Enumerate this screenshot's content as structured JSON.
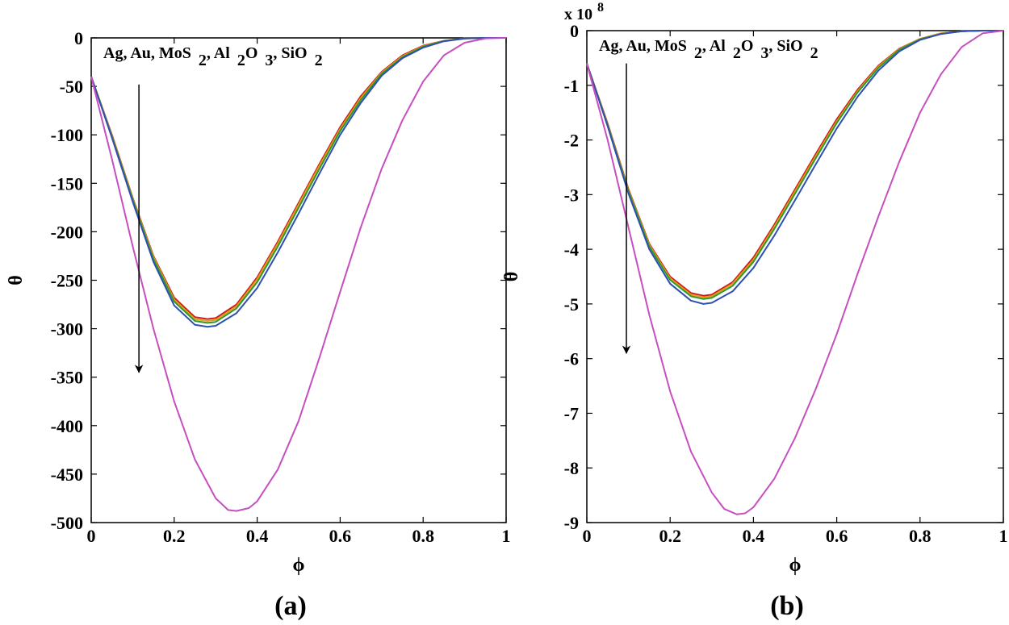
{
  "colors": {
    "Ag": "#d01c1c",
    "Au": "#e0a018",
    "MoS2": "#2e9a2e",
    "Al2O3": "#2e4fb0",
    "SiO2": "#c64fc0",
    "axis": "#000000",
    "arrow": "#000000"
  },
  "chart_data": [
    {
      "type": "line",
      "panel_label": "(a)",
      "xlabel": "ϕ",
      "ylabel": "θ",
      "xlim": [
        0,
        1
      ],
      "ylim": [
        -500,
        0
      ],
      "xticks": [
        0,
        0.2,
        0.4,
        0.6,
        0.8,
        1
      ],
      "xtick_labels": [
        "0",
        "0.2",
        "0.4",
        "0.6",
        "0.8",
        "1"
      ],
      "yticks": [
        0,
        -50,
        -100,
        -150,
        -200,
        -250,
        -300,
        -350,
        -400,
        -450,
        -500
      ],
      "ytick_labels": [
        "0",
        "-50",
        "-100",
        "-150",
        "-200",
        "-250",
        "-300",
        "-350",
        "-400",
        "-450",
        "-500"
      ],
      "exponent_label": null,
      "annotation": {
        "parts": [
          {
            "text": "Ag, Au, MoS",
            "sub": false
          },
          {
            "text": "2",
            "sub": true
          },
          {
            "text": ", Al",
            "sub": false
          },
          {
            "text": "2",
            "sub": true
          },
          {
            "text": "O",
            "sub": false
          },
          {
            "text": "3",
            "sub": true
          },
          {
            "text": ",  SiO",
            "sub": false
          },
          {
            "text": "2",
            "sub": true
          }
        ],
        "arrow_x": 0.115,
        "arrow_from_y": -48,
        "arrow_to_y": -345
      },
      "series": [
        {
          "name": "Ag",
          "color_key": "Ag",
          "x": [
            0,
            0.05,
            0.1,
            0.15,
            0.2,
            0.25,
            0.28,
            0.3,
            0.35,
            0.4,
            0.45,
            0.5,
            0.55,
            0.6,
            0.65,
            0.7,
            0.75,
            0.8,
            0.85,
            0.9,
            0.95,
            1.0
          ],
          "y": [
            -40,
            -100,
            -165,
            -225,
            -268,
            -288,
            -290,
            -289,
            -275,
            -247,
            -210,
            -170,
            -130,
            -92,
            -60,
            -35,
            -18,
            -8,
            -3,
            -0.5,
            0,
            0
          ]
        },
        {
          "name": "Au",
          "color_key": "Au",
          "x": [
            0,
            0.05,
            0.1,
            0.15,
            0.2,
            0.25,
            0.28,
            0.3,
            0.35,
            0.4,
            0.45,
            0.5,
            0.55,
            0.6,
            0.65,
            0.7,
            0.75,
            0.8,
            0.85,
            0.9,
            0.95,
            1.0
          ],
          "y": [
            -40,
            -101,
            -166,
            -226,
            -270,
            -290,
            -292,
            -291,
            -277,
            -249,
            -212,
            -172,
            -132,
            -94,
            -62,
            -36,
            -19,
            -8.5,
            -3,
            -0.5,
            0,
            0
          ]
        },
        {
          "name": "MoS2",
          "color_key": "MoS2",
          "x": [
            0,
            0.05,
            0.1,
            0.15,
            0.2,
            0.25,
            0.28,
            0.3,
            0.35,
            0.4,
            0.45,
            0.5,
            0.55,
            0.6,
            0.65,
            0.7,
            0.75,
            0.8,
            0.85,
            0.9,
            0.95,
            1.0
          ],
          "y": [
            -40,
            -102,
            -167,
            -228,
            -272,
            -292,
            -294,
            -293,
            -279,
            -252,
            -215,
            -175,
            -135,
            -96,
            -64,
            -37,
            -20,
            -9,
            -3.2,
            -0.6,
            0,
            0
          ]
        },
        {
          "name": "Al2O3",
          "color_key": "Al2O3",
          "x": [
            0,
            0.05,
            0.1,
            0.15,
            0.2,
            0.25,
            0.28,
            0.3,
            0.35,
            0.4,
            0.45,
            0.5,
            0.55,
            0.6,
            0.65,
            0.7,
            0.75,
            0.8,
            0.85,
            0.9,
            0.95,
            1.0
          ],
          "y": [
            -40,
            -103,
            -169,
            -231,
            -276,
            -296,
            -298,
            -297,
            -284,
            -258,
            -221,
            -181,
            -140,
            -100,
            -67,
            -39,
            -21,
            -10,
            -3.5,
            -0.7,
            0,
            0
          ]
        },
        {
          "name": "SiO2",
          "color_key": "SiO2",
          "x": [
            0,
            0.05,
            0.1,
            0.15,
            0.2,
            0.25,
            0.3,
            0.33,
            0.35,
            0.38,
            0.4,
            0.45,
            0.5,
            0.55,
            0.6,
            0.65,
            0.7,
            0.75,
            0.8,
            0.85,
            0.9,
            0.95,
            1.0
          ],
          "y": [
            -40,
            -125,
            -215,
            -300,
            -375,
            -435,
            -475,
            -487,
            -488,
            -485,
            -478,
            -445,
            -395,
            -330,
            -262,
            -195,
            -135,
            -85,
            -45,
            -18,
            -5,
            -0.5,
            0
          ]
        }
      ]
    },
    {
      "type": "line",
      "panel_label": "(b)",
      "xlabel": "ϕ",
      "ylabel": "θ",
      "xlim": [
        0,
        1
      ],
      "ylim": [
        -9,
        0
      ],
      "xticks": [
        0,
        0.2,
        0.4,
        0.6,
        0.8,
        1
      ],
      "xtick_labels": [
        "0",
        "0.2",
        "0.4",
        "0.6",
        "0.8",
        "1"
      ],
      "yticks": [
        0,
        -1,
        -2,
        -3,
        -4,
        -5,
        -6,
        -7,
        -8,
        -9
      ],
      "ytick_labels": [
        "0",
        "-1",
        "-2",
        "-3",
        "-4",
        "-5",
        "-6",
        "-7",
        "-8",
        "-9"
      ],
      "exponent_label": {
        "base": "x 10",
        "power": "8"
      },
      "annotation": {
        "parts": [
          {
            "text": "Ag, Au, MoS",
            "sub": false
          },
          {
            "text": "2",
            "sub": true
          },
          {
            "text": ", Al",
            "sub": false
          },
          {
            "text": "2",
            "sub": true
          },
          {
            "text": "O",
            "sub": false
          },
          {
            "text": "3",
            "sub": true
          },
          {
            "text": ",  SiO",
            "sub": false
          },
          {
            "text": "2",
            "sub": true
          }
        ],
        "arrow_x": 0.095,
        "arrow_from_y": -0.6,
        "arrow_to_y": -5.9
      },
      "series": [
        {
          "name": "Ag",
          "color_key": "Ag",
          "x": [
            0,
            0.05,
            0.1,
            0.15,
            0.2,
            0.25,
            0.28,
            0.3,
            0.35,
            0.4,
            0.45,
            0.5,
            0.55,
            0.6,
            0.65,
            0.7,
            0.75,
            0.8,
            0.85,
            0.9,
            0.95,
            1.0
          ],
          "y": [
            -0.6,
            -1.7,
            -2.9,
            -3.9,
            -4.5,
            -4.8,
            -4.85,
            -4.83,
            -4.6,
            -4.15,
            -3.55,
            -2.9,
            -2.25,
            -1.62,
            -1.08,
            -0.64,
            -0.33,
            -0.15,
            -0.05,
            -0.01,
            0,
            0
          ]
        },
        {
          "name": "Au",
          "color_key": "Au",
          "x": [
            0,
            0.05,
            0.1,
            0.15,
            0.2,
            0.25,
            0.28,
            0.3,
            0.35,
            0.4,
            0.45,
            0.5,
            0.55,
            0.6,
            0.65,
            0.7,
            0.75,
            0.8,
            0.85,
            0.9,
            0.95,
            1.0
          ],
          "y": [
            -0.6,
            -1.72,
            -2.92,
            -3.92,
            -4.53,
            -4.83,
            -4.88,
            -4.86,
            -4.63,
            -4.19,
            -3.59,
            -2.94,
            -2.29,
            -1.66,
            -1.11,
            -0.66,
            -0.34,
            -0.15,
            -0.05,
            -0.01,
            0,
            0
          ]
        },
        {
          "name": "MoS2",
          "color_key": "MoS2",
          "x": [
            0,
            0.05,
            0.1,
            0.15,
            0.2,
            0.25,
            0.28,
            0.3,
            0.35,
            0.4,
            0.45,
            0.5,
            0.55,
            0.6,
            0.65,
            0.7,
            0.75,
            0.8,
            0.85,
            0.9,
            0.95,
            1.0
          ],
          "y": [
            -0.6,
            -1.73,
            -2.94,
            -3.95,
            -4.56,
            -4.86,
            -4.91,
            -4.89,
            -4.67,
            -4.23,
            -3.63,
            -2.98,
            -2.33,
            -1.69,
            -1.13,
            -0.68,
            -0.35,
            -0.16,
            -0.06,
            -0.01,
            0,
            0
          ]
        },
        {
          "name": "Al2O3",
          "color_key": "Al2O3",
          "x": [
            0,
            0.05,
            0.1,
            0.15,
            0.2,
            0.25,
            0.28,
            0.3,
            0.35,
            0.4,
            0.45,
            0.5,
            0.55,
            0.6,
            0.65,
            0.7,
            0.75,
            0.8,
            0.85,
            0.9,
            0.95,
            1.0
          ],
          "y": [
            -0.6,
            -1.75,
            -2.98,
            -4.0,
            -4.63,
            -4.94,
            -5.0,
            -4.98,
            -4.77,
            -4.34,
            -3.75,
            -3.1,
            -2.44,
            -1.79,
            -1.21,
            -0.73,
            -0.38,
            -0.17,
            -0.06,
            -0.01,
            0,
            0
          ]
        },
        {
          "name": "SiO2",
          "color_key": "SiO2",
          "x": [
            0,
            0.05,
            0.1,
            0.15,
            0.2,
            0.25,
            0.3,
            0.33,
            0.36,
            0.38,
            0.4,
            0.45,
            0.5,
            0.55,
            0.6,
            0.65,
            0.7,
            0.75,
            0.8,
            0.85,
            0.9,
            0.95,
            1.0
          ],
          "y": [
            -0.6,
            -2.0,
            -3.6,
            -5.2,
            -6.6,
            -7.7,
            -8.45,
            -8.75,
            -8.85,
            -8.83,
            -8.72,
            -8.2,
            -7.45,
            -6.55,
            -5.55,
            -4.45,
            -3.4,
            -2.4,
            -1.5,
            -0.8,
            -0.3,
            -0.05,
            0
          ]
        }
      ]
    }
  ]
}
